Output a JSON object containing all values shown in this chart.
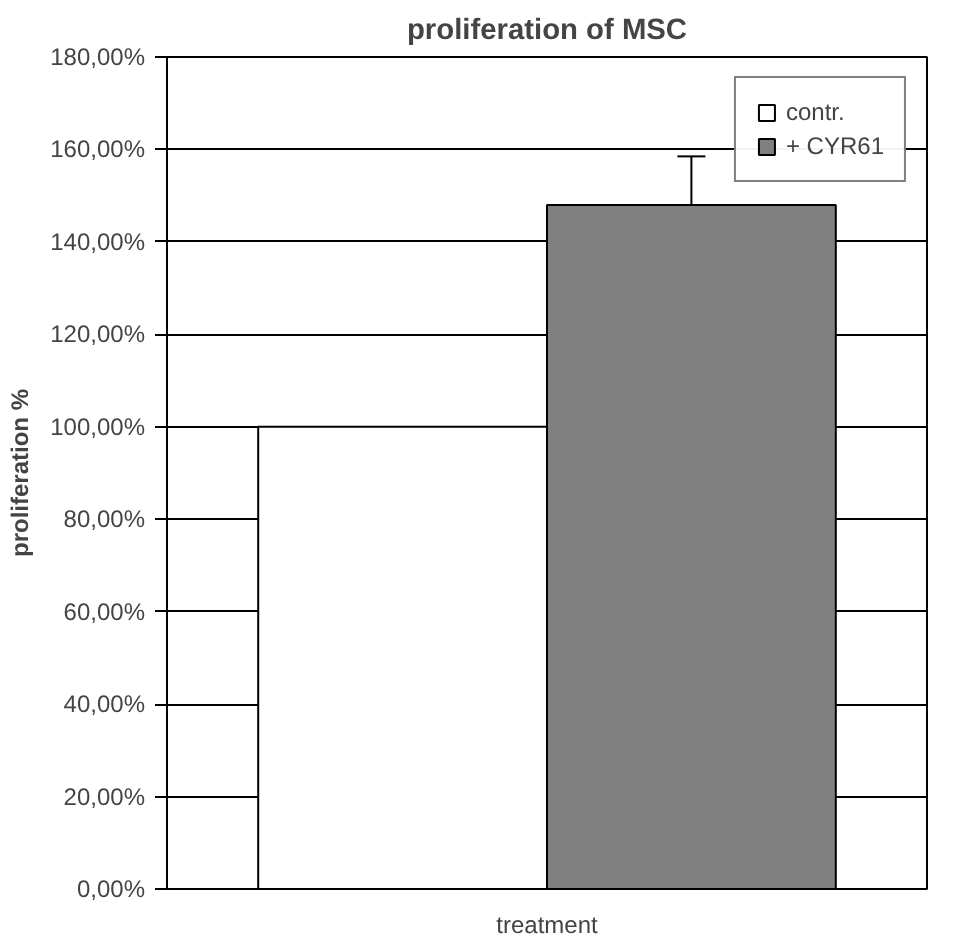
{
  "chart_data": {
    "type": "bar",
    "title": "proliferation of MSC",
    "ylabel": "proliferation %",
    "categories": [
      "treatment"
    ],
    "series": [
      {
        "name": "contr.",
        "color": "#ffffff",
        "values": [
          100
        ],
        "errors": [
          null
        ]
      },
      {
        "name": "+ CYR61",
        "color": "#808080",
        "values": [
          148
        ],
        "errors": [
          10.5
        ]
      }
    ],
    "ylim": [
      0,
      180
    ],
    "yticks": [
      {
        "value": 0,
        "label": "0,00%"
      },
      {
        "value": 20,
        "label": "20,00%"
      },
      {
        "value": 40,
        "label": "40,00%"
      },
      {
        "value": 60,
        "label": "60,00%"
      },
      {
        "value": 80,
        "label": "80,00%"
      },
      {
        "value": 100,
        "label": "100,00%"
      },
      {
        "value": 120,
        "label": "120,00%"
      },
      {
        "value": 140,
        "label": "140,00%"
      },
      {
        "value": 160,
        "label": "160,00%"
      },
      {
        "value": 180,
        "label": "180,00%"
      }
    ],
    "grid": "y",
    "legend": "top right"
  }
}
